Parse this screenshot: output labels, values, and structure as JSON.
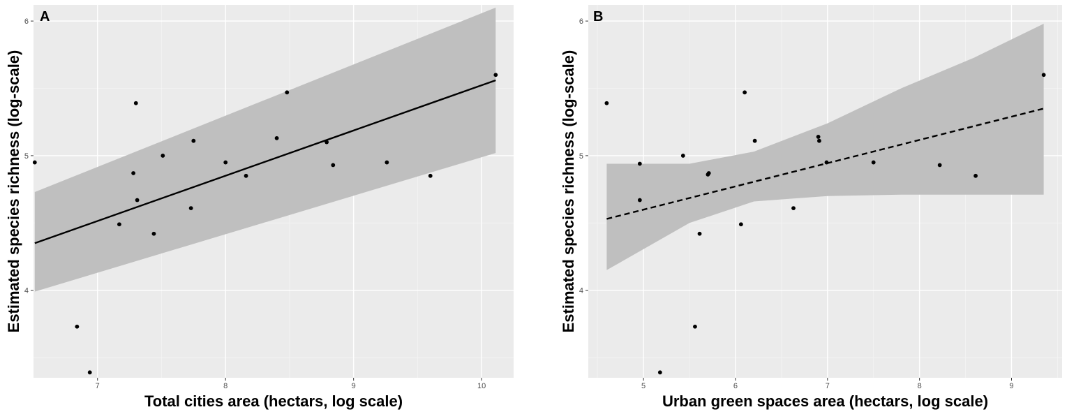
{
  "chart_data": [
    {
      "type": "scatter",
      "panel_label": "A",
      "title": "",
      "xlabel": "Total cities area (hectars, log scale)",
      "ylabel": "Estimated species richness (log-scale)",
      "xlim": [
        6.5,
        10.25
      ],
      "ylim": [
        3.35,
        6.12
      ],
      "x_ticks": [
        7,
        8,
        9,
        10
      ],
      "y_ticks": [
        4,
        5,
        6
      ],
      "grid": true,
      "background": "#ebebeb",
      "points": [
        {
          "x": 6.51,
          "y": 4.95
        },
        {
          "x": 6.84,
          "y": 3.73
        },
        {
          "x": 6.94,
          "y": 3.39
        },
        {
          "x": 7.17,
          "y": 4.49
        },
        {
          "x": 7.28,
          "y": 4.87
        },
        {
          "x": 7.3,
          "y": 5.39
        },
        {
          "x": 7.31,
          "y": 4.67
        },
        {
          "x": 7.44,
          "y": 4.42
        },
        {
          "x": 7.51,
          "y": 5.0
        },
        {
          "x": 7.73,
          "y": 4.61
        },
        {
          "x": 7.75,
          "y": 5.11
        },
        {
          "x": 8.0,
          "y": 4.95
        },
        {
          "x": 8.16,
          "y": 4.85
        },
        {
          "x": 8.4,
          "y": 5.13
        },
        {
          "x": 8.48,
          "y": 5.47
        },
        {
          "x": 8.79,
          "y": 5.1
        },
        {
          "x": 8.84,
          "y": 4.93
        },
        {
          "x": 9.26,
          "y": 4.95
        },
        {
          "x": 9.6,
          "y": 4.85
        },
        {
          "x": 10.11,
          "y": 5.6
        }
      ],
      "fit": {
        "x": [
          6.51,
          10.11
        ],
        "y": [
          4.35,
          5.56
        ],
        "line_style": "solid"
      },
      "ci_band": {
        "x": [
          6.51,
          10.11
        ],
        "upper": [
          4.73,
          6.1
        ],
        "lower": [
          3.99,
          5.02
        ],
        "color": "#bfbfbf"
      }
    },
    {
      "type": "scatter",
      "panel_label": "B",
      "title": "",
      "xlabel": "Urban green spaces area (hectars, log scale)",
      "ylabel": "Estimated species richness (log-scale)",
      "xlim": [
        4.4,
        9.55
      ],
      "ylim": [
        3.35,
        6.12
      ],
      "x_ticks": [
        5,
        6,
        7,
        8,
        9
      ],
      "y_ticks": [
        4,
        5,
        6
      ],
      "grid": true,
      "background": "#ebebeb",
      "points": [
        {
          "x": 4.6,
          "y": 5.39
        },
        {
          "x": 4.96,
          "y": 4.94
        },
        {
          "x": 4.96,
          "y": 4.67
        },
        {
          "x": 5.18,
          "y": 3.39
        },
        {
          "x": 5.43,
          "y": 5.0
        },
        {
          "x": 5.56,
          "y": 3.73
        },
        {
          "x": 5.61,
          "y": 4.42
        },
        {
          "x": 5.7,
          "y": 4.86
        },
        {
          "x": 5.71,
          "y": 4.87
        },
        {
          "x": 6.06,
          "y": 4.49
        },
        {
          "x": 6.1,
          "y": 5.47
        },
        {
          "x": 6.21,
          "y": 5.11
        },
        {
          "x": 6.63,
          "y": 4.61
        },
        {
          "x": 6.9,
          "y": 5.14
        },
        {
          "x": 6.91,
          "y": 5.11
        },
        {
          "x": 6.99,
          "y": 4.95
        },
        {
          "x": 7.5,
          "y": 4.95
        },
        {
          "x": 8.22,
          "y": 4.93
        },
        {
          "x": 8.61,
          "y": 4.85
        },
        {
          "x": 9.35,
          "y": 5.6
        }
      ],
      "fit": {
        "x": [
          4.6,
          9.35
        ],
        "y": [
          4.53,
          5.35
        ],
        "line_style": "dashed"
      },
      "ci_band": {
        "x": [
          4.6,
          5.5,
          6.2,
          7.0,
          7.8,
          8.6,
          9.35
        ],
        "upper": [
          4.94,
          4.94,
          5.03,
          5.24,
          5.5,
          5.73,
          5.98
        ],
        "lower": [
          4.15,
          4.5,
          4.66,
          4.7,
          4.71,
          4.71,
          4.71
        ],
        "color": "#bfbfbf"
      }
    }
  ]
}
